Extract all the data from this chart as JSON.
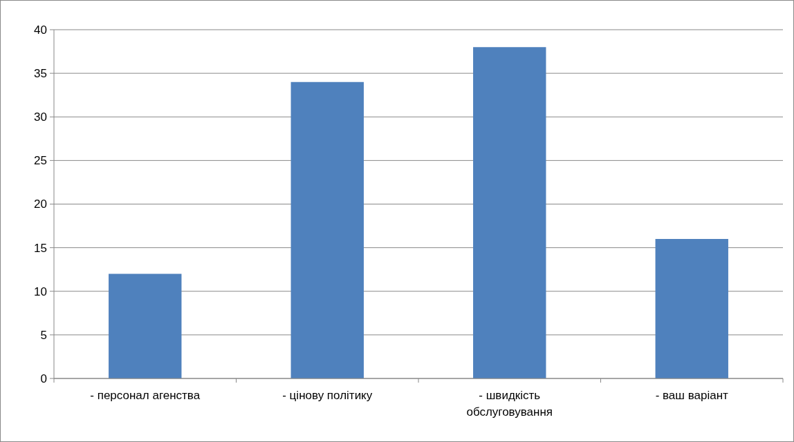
{
  "chart_data": {
    "type": "bar",
    "categories": [
      "- персонал агенства",
      "- цінову політику",
      "- швидкість обслуговування",
      "- ваш варіант"
    ],
    "values": [
      12,
      34,
      38,
      16
    ],
    "color": "#4f81bd",
    "ylim": [
      0,
      40
    ],
    "yticks": [
      0,
      5,
      10,
      15,
      20,
      25,
      30,
      35,
      40
    ],
    "grid": "y"
  }
}
